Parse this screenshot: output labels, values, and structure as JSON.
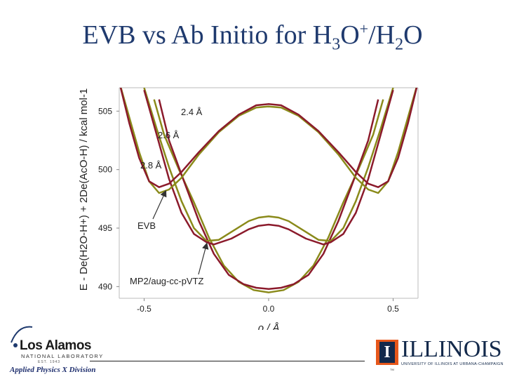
{
  "slide": {
    "title_prefix": "EVB vs Ab Initio for H",
    "title_sub1": "3",
    "title_mid": "O",
    "title_sup": "+",
    "title_mid2": "/H",
    "title_sub2": "2",
    "title_end": "O"
  },
  "chart_data": {
    "type": "line",
    "xlabel": "ρ / Å",
    "ylabel": "E - De(H2O-H+) + 2De(AcO-H) / kcal mol-1",
    "xlim": [
      -0.6,
      0.6
    ],
    "ylim": [
      489,
      507
    ],
    "xticks": [
      "-0.5",
      "0.0",
      "0.5"
    ],
    "yticks": [
      "490",
      "495",
      "500",
      "505"
    ],
    "grid": false,
    "annotations": [
      "2.4 Å",
      "2.6 Å",
      "2.8 Å",
      "EVB",
      "MP2/aug-cc-pVTZ"
    ],
    "series": [
      {
        "group": "2.4 Å",
        "method": "EVB",
        "color": "#8a8a1a",
        "x": [
          -0.46,
          -0.42,
          -0.36,
          -0.3,
          -0.24,
          -0.18,
          -0.12,
          -0.06,
          0.0,
          0.06,
          0.12,
          0.18,
          0.24,
          0.3,
          0.36,
          0.42,
          0.46
        ],
        "y": [
          506.0,
          503.0,
          500.0,
          497.2,
          494.2,
          491.8,
          490.4,
          489.7,
          489.5,
          489.7,
          490.4,
          491.8,
          494.2,
          497.2,
          500.0,
          503.0,
          506.0
        ]
      },
      {
        "group": "2.4 Å",
        "method": "MP2/aug-cc-pVTZ",
        "color": "#8b1a2b",
        "x": [
          -0.44,
          -0.4,
          -0.34,
          -0.28,
          -0.22,
          -0.16,
          -0.1,
          -0.05,
          0.0,
          0.05,
          0.1,
          0.16,
          0.22,
          0.28,
          0.34,
          0.4,
          0.44
        ],
        "y": [
          506.0,
          502.5,
          499.0,
          495.6,
          492.8,
          491.0,
          490.2,
          489.9,
          489.8,
          489.9,
          490.2,
          491.0,
          492.8,
          495.6,
          499.0,
          502.5,
          506.0
        ]
      },
      {
        "group": "2.6 Å",
        "method": "EVB",
        "color": "#8a8a1a",
        "x": [
          -0.5,
          -0.45,
          -0.4,
          -0.35,
          -0.3,
          -0.25,
          -0.2,
          -0.14,
          -0.08,
          -0.04,
          0.0,
          0.04,
          0.08,
          0.14,
          0.2,
          0.25,
          0.3,
          0.35,
          0.4,
          0.45,
          0.5
        ],
        "y": [
          507.0,
          503.5,
          500.2,
          497.3,
          495.0,
          493.9,
          494.0,
          494.8,
          495.6,
          495.9,
          496.0,
          495.9,
          495.6,
          494.8,
          494.0,
          493.9,
          495.0,
          497.3,
          500.2,
          503.5,
          507.0
        ]
      },
      {
        "group": "2.6 Å",
        "method": "MP2/aug-cc-pVTZ",
        "color": "#8b1a2b",
        "x": [
          -0.5,
          -0.45,
          -0.4,
          -0.35,
          -0.3,
          -0.25,
          -0.22,
          -0.15,
          -0.08,
          -0.04,
          0.0,
          0.04,
          0.08,
          0.15,
          0.22,
          0.25,
          0.3,
          0.35,
          0.4,
          0.45,
          0.5
        ],
        "y": [
          506.8,
          503.0,
          499.2,
          496.3,
          494.5,
          493.8,
          493.6,
          494.1,
          494.9,
          495.2,
          495.3,
          495.2,
          494.9,
          494.1,
          493.6,
          493.8,
          494.5,
          496.3,
          499.2,
          503.0,
          506.8
        ]
      },
      {
        "group": "2.8 Å",
        "method": "EVB",
        "color": "#8a8a1a",
        "x": [
          -0.6,
          -0.56,
          -0.52,
          -0.48,
          -0.44,
          -0.4,
          -0.35,
          -0.28,
          -0.2,
          -0.12,
          -0.05,
          0.0,
          0.05,
          0.12,
          0.2,
          0.28,
          0.35,
          0.4,
          0.44,
          0.48,
          0.52,
          0.56,
          0.6
        ],
        "y": [
          507.5,
          504.5,
          501.5,
          499.0,
          498.0,
          498.3,
          499.3,
          501.3,
          503.2,
          504.6,
          505.3,
          505.4,
          505.3,
          504.6,
          503.2,
          501.3,
          499.3,
          498.3,
          498.0,
          499.0,
          501.5,
          504.5,
          507.5
        ]
      },
      {
        "group": "2.8 Å",
        "method": "MP2/aug-cc-pVTZ",
        "color": "#8b1a2b",
        "x": [
          -0.6,
          -0.56,
          -0.52,
          -0.48,
          -0.44,
          -0.4,
          -0.35,
          -0.28,
          -0.2,
          -0.12,
          -0.05,
          0.0,
          0.05,
          0.12,
          0.2,
          0.28,
          0.35,
          0.4,
          0.44,
          0.48,
          0.52,
          0.56,
          0.6
        ],
        "y": [
          507.5,
          504.0,
          501.0,
          499.0,
          498.5,
          498.8,
          499.8,
          501.5,
          503.3,
          504.7,
          505.5,
          505.6,
          505.5,
          504.7,
          503.3,
          501.5,
          499.8,
          498.8,
          498.5,
          499.0,
          501.0,
          504.0,
          507.5
        ]
      }
    ]
  },
  "logos": {
    "lanl_name": "Los Alamos",
    "lanl_sub": "NATIONAL LABORATORY",
    "lanl_est": "EST. 1943",
    "lanl_division": "Applied Physics X Division",
    "uiuc_letter": "I",
    "uiuc_name": "ILLINOIS",
    "uiuc_sub": "UNIVERSITY OF ILLINOIS AT URBANA-CHAMPAIGN",
    "uiuc_tm": "TM"
  }
}
